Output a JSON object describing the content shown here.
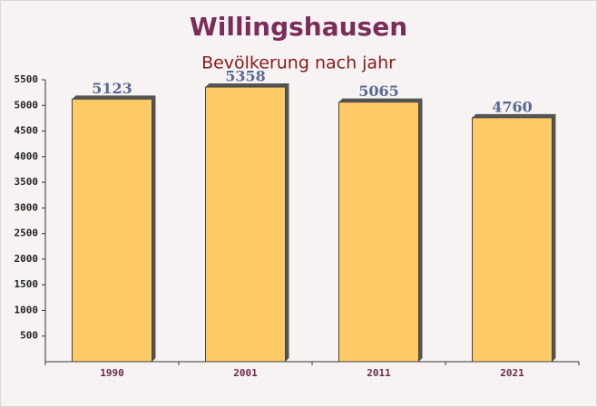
{
  "chart_data": {
    "type": "bar",
    "title": "Willingshausen",
    "subtitle": "Bevölkerung nach jahr",
    "categories": [
      "1990",
      "2001",
      "2011",
      "2021"
    ],
    "values": [
      5123,
      5358,
      5065,
      4760
    ],
    "color": "#ffc966",
    "ylim": [
      0,
      5500
    ],
    "yticks": [
      500,
      1000,
      1500,
      2000,
      2500,
      3000,
      3500,
      4000,
      4500,
      5000,
      5500
    ],
    "grid": false
  }
}
